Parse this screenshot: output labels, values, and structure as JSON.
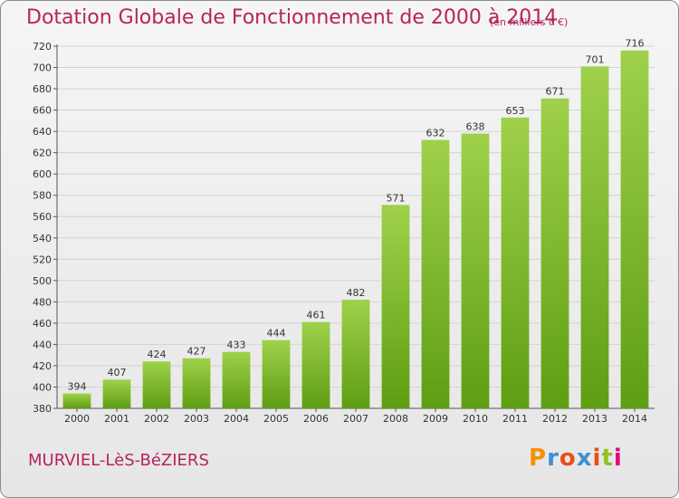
{
  "header": {
    "title": "Dotation Globale de Fonctionnement de 2000 à 2014",
    "unit": "(en milliers d'€)"
  },
  "footer": {
    "commune": "MURVIEL-LèS-BéZIERS",
    "logo_letters": [
      "P",
      "r",
      "o",
      "x",
      "i",
      "t",
      "i"
    ],
    "logo_colors": [
      "#f39200",
      "#3f8fd2",
      "#e84e1b",
      "#3f8fd2",
      "#e84e1b",
      "#95c11f",
      "#e6007e"
    ]
  },
  "colors": {
    "bar_light": "#9fd14a",
    "bar_dark": "#5e9e12",
    "text": "#b5245f"
  },
  "chart_data": {
    "type": "bar",
    "title": "Dotation Globale de Fonctionnement de 2000 à 2014",
    "categories": [
      "2000",
      "2001",
      "2002",
      "2003",
      "2004",
      "2005",
      "2006",
      "2007",
      "2008",
      "2009",
      "2010",
      "2011",
      "2012",
      "2013",
      "2014"
    ],
    "values": [
      394,
      407,
      424,
      427,
      433,
      444,
      461,
      482,
      571,
      632,
      638,
      653,
      671,
      701,
      716
    ],
    "ylim": [
      380,
      720
    ],
    "yticks": [
      380,
      400,
      420,
      440,
      460,
      480,
      500,
      520,
      540,
      560,
      580,
      600,
      620,
      640,
      660,
      680,
      700,
      720
    ],
    "grid": true
  }
}
